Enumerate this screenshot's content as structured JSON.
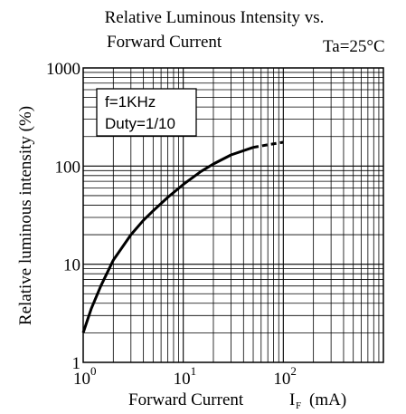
{
  "chart_data": {
    "type": "line",
    "title_lines": [
      "Relative Luminous Intensity vs.",
      "Forward Current"
    ],
    "condition": "Ta=25°C",
    "xlabel": "Forward Current",
    "xlabel_symbol": "I",
    "xlabel_symbol_sub": "F",
    "xlabel_unit": "(mA)",
    "ylabel": "Relative luminous intensity (%)",
    "x_scale": "log",
    "y_scale": "log",
    "xlim": [
      1,
      1000
    ],
    "ylim": [
      1,
      1000
    ],
    "x_ticks": [
      {
        "value": 1,
        "base": "10",
        "exp": "0"
      },
      {
        "value": 10,
        "base": "10",
        "exp": "1"
      },
      {
        "value": 100,
        "base": "10",
        "exp": "2"
      }
    ],
    "y_ticks": [
      {
        "value": 1,
        "label": "1"
      },
      {
        "value": 10,
        "label": "10"
      },
      {
        "value": 100,
        "label": "100"
      },
      {
        "value": 1000,
        "label": "1000"
      }
    ],
    "grid": true,
    "annotation_lines": [
      "f=1KHz",
      "Duty=1/10"
    ],
    "series": [
      {
        "style": "solid",
        "x": [
          1,
          1.2,
          1.5,
          2,
          3,
          4,
          5,
          7,
          10,
          15,
          20,
          30,
          50
        ],
        "y": [
          2,
          3.5,
          6,
          11,
          20,
          28,
          35,
          48,
          65,
          88,
          105,
          130,
          155
        ]
      },
      {
        "style": "dashed",
        "x": [
          50,
          70,
          100
        ],
        "y": [
          155,
          165,
          175
        ]
      }
    ]
  }
}
